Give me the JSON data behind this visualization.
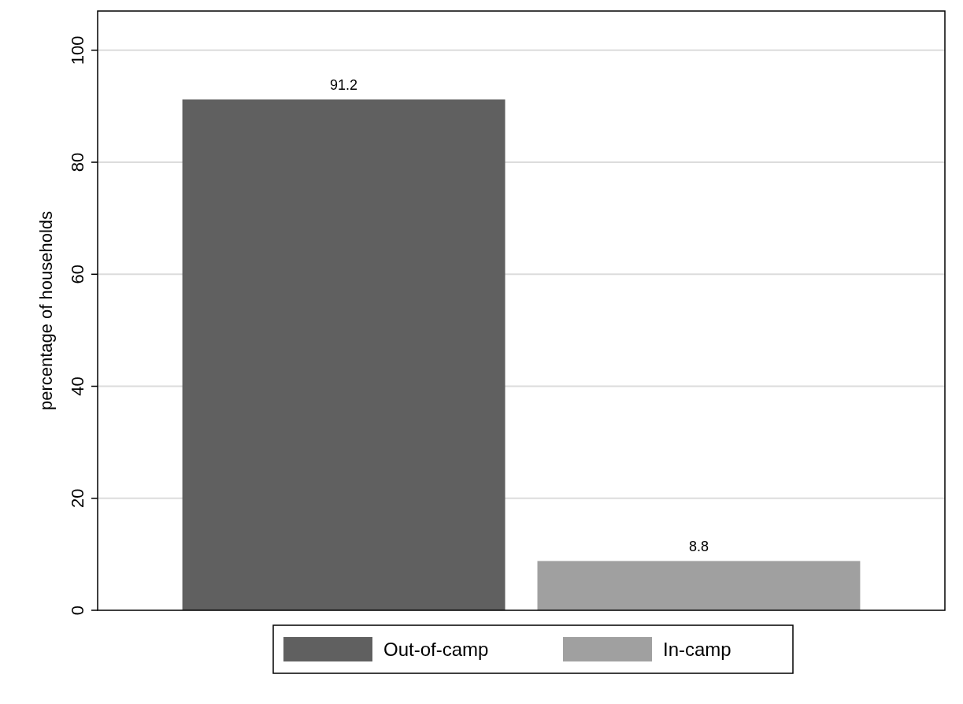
{
  "chart_data": {
    "type": "bar",
    "ylabel": "percentage of households",
    "categories": [
      null
    ],
    "series": [
      {
        "name": "Out-of-camp",
        "color": "#606060",
        "values": [
          91.2
        ]
      },
      {
        "name": "In-camp",
        "color": "#a0a0a0",
        "values": [
          8.8
        ]
      }
    ],
    "ylim": [
      0,
      107
    ],
    "yticks": [
      0,
      20,
      40,
      60,
      80,
      100
    ],
    "grid": "y",
    "legend": "bottom",
    "data_labels": true
  }
}
